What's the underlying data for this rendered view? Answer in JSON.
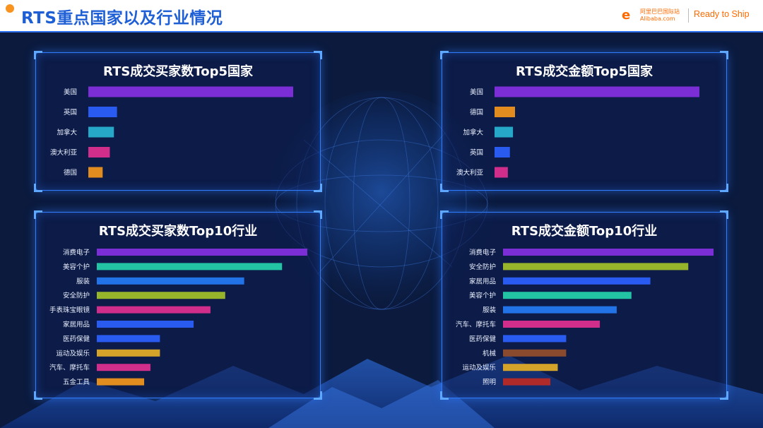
{
  "header": {
    "title": "RTS重点国家以及行业情况",
    "logo_cn": "阿里巴巴国际站",
    "logo_en": "Alibaba.com",
    "tag": "Ready to Ship"
  },
  "colors": {
    "accent": "#2f7cff",
    "title_blue": "#1e5fd6",
    "brand_orange": "#ff6a00"
  },
  "chart_data": [
    {
      "id": "buyers-country",
      "type": "bar",
      "title": "RTS成交买家数Top5国家",
      "categories": [
        "美国",
        "英国",
        "加拿大",
        "澳大利亚",
        "德国"
      ],
      "values": [
        100,
        14,
        12.5,
        10.5,
        7
      ],
      "colors": [
        "#7b2ed6",
        "#2a5bf0",
        "#26a9c9",
        "#d12d8a",
        "#e08c1e"
      ]
    },
    {
      "id": "amount-country",
      "type": "bar",
      "title": "RTS成交金额Top5国家",
      "categories": [
        "美国",
        "德国",
        "加拿大",
        "英国",
        "澳大利亚"
      ],
      "values": [
        100,
        10,
        9,
        7.5,
        6.5
      ],
      "colors": [
        "#7b2ed6",
        "#e08c1e",
        "#26a9c9",
        "#2a5bf0",
        "#d12d8a"
      ]
    },
    {
      "id": "buyers-industry",
      "type": "bar",
      "title": "RTS成交买家数Top10行业",
      "categories": [
        "消费电子",
        "美容个护",
        "服装",
        "安全防护",
        "手表珠宝眼镜",
        "家居用品",
        "医药保健",
        "运动及娱乐",
        "汽车、摩托车",
        "五金工具"
      ],
      "values": [
        100,
        88,
        70,
        61,
        54,
        46,
        30,
        30,
        25.5,
        22.5
      ],
      "colors": [
        "#7b2ed6",
        "#22c4a4",
        "#2373e8",
        "#97b52a",
        "#d12d8a",
        "#2a5bf0",
        "#2a5bf0",
        "#d4a32a",
        "#d12d8a",
        "#e08c1e"
      ]
    },
    {
      "id": "amount-industry",
      "type": "bar",
      "title": "RTS成交金额Top10行业",
      "categories": [
        "消费电子",
        "安全防护",
        "家居用品",
        "美容个护",
        "服装",
        "汽车、摩托车",
        "医药保健",
        "机械",
        "运动及娱乐",
        "照明"
      ],
      "values": [
        100,
        88,
        70,
        61,
        54,
        46,
        30,
        30,
        26,
        22.5
      ],
      "colors": [
        "#7b2ed6",
        "#97b52a",
        "#2a5bf0",
        "#22c4a4",
        "#2373e8",
        "#d12d8a",
        "#2a5bf0",
        "#8a4a2e",
        "#d4a32a",
        "#b02a2a"
      ]
    }
  ]
}
